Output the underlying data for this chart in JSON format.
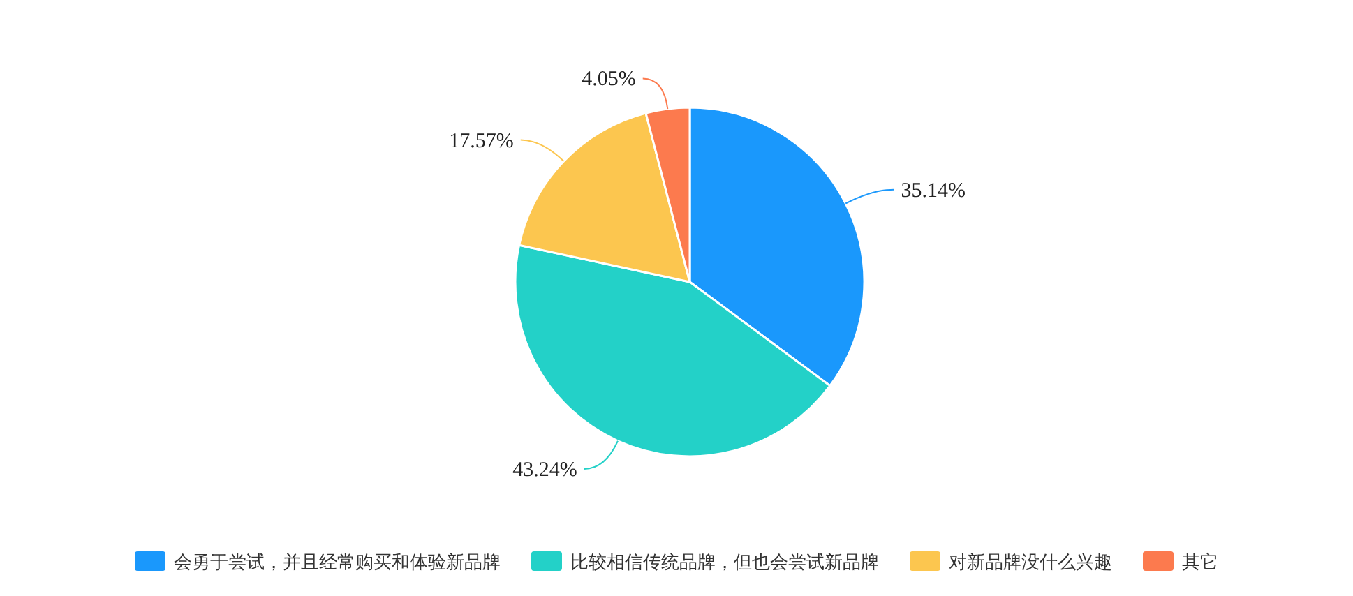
{
  "chart_data": {
    "type": "pie",
    "categories": [
      "会勇于尝试，并且经常购买和体验新品牌",
      "比较相信传统品牌，但也会尝试新品牌",
      "对新品牌没什么兴趣",
      "其它"
    ],
    "values": [
      35.14,
      43.24,
      17.57,
      4.05
    ],
    "value_labels": [
      "35.14%",
      "43.24%",
      "17.57%",
      "4.05%"
    ],
    "colors": [
      "#1a98fc",
      "#23d1c8",
      "#fcc64f",
      "#fc7a4e"
    ],
    "legend": "bottom"
  }
}
